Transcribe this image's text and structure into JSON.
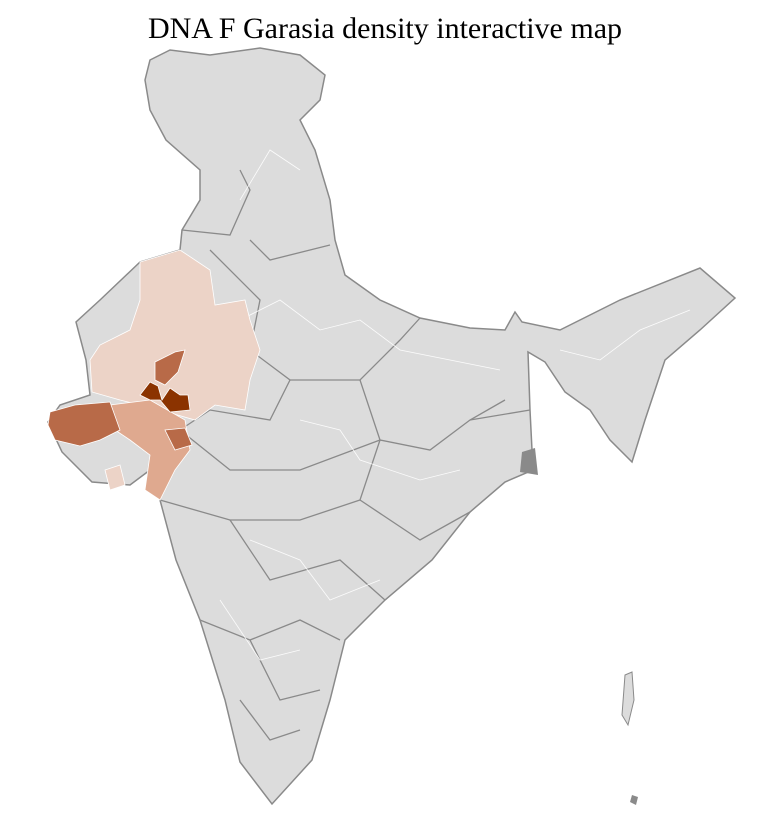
{
  "title": "DNA F Garasia density interactive map",
  "colors": {
    "no_data": "#dcdcdc",
    "border": "#8a8a8a",
    "district_line": "#ffffff",
    "density_low": "#ecd3c7",
    "density_mid_low": "#dfa98f",
    "density_mid": "#b86a48",
    "density_high": "#8b3300"
  }
}
